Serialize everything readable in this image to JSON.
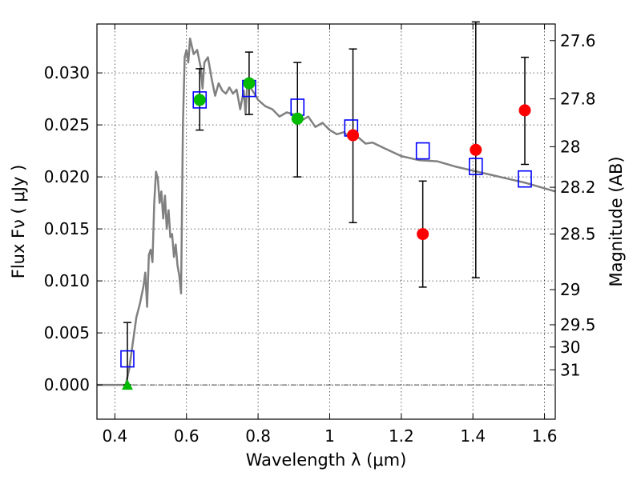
{
  "chart_data": {
    "type": "scatter",
    "xlabel": "Wavelength  λ (μm)",
    "ylabel": "Flux  Fν  ( μJy )",
    "ylabel_right": "Magnitude (AB)",
    "xlim": [
      0.35,
      1.63
    ],
    "ylim": [
      -0.0033,
      0.0347
    ],
    "grid": true,
    "x_ticks": [
      {
        "value": 0.4,
        "label": "0.4"
      },
      {
        "value": 0.6,
        "label": "0.6"
      },
      {
        "value": 0.8,
        "label": "0.8"
      },
      {
        "value": 1.0,
        "label": "1"
      },
      {
        "value": 1.2,
        "label": "1.2"
      },
      {
        "value": 1.4,
        "label": "1.4"
      },
      {
        "value": 1.6,
        "label": "1.6"
      }
    ],
    "y_ticks": [
      {
        "value": 0.0,
        "label": "0.000"
      },
      {
        "value": 0.005,
        "label": "0.005"
      },
      {
        "value": 0.01,
        "label": "0.010"
      },
      {
        "value": 0.015,
        "label": "0.015"
      },
      {
        "value": 0.02,
        "label": "0.020"
      },
      {
        "value": 0.025,
        "label": "0.025"
      },
      {
        "value": 0.03,
        "label": "0.030"
      }
    ],
    "right_ticks": [
      {
        "flux": 0.0331,
        "label": "27.6"
      },
      {
        "flux": 0.0275,
        "label": "27.8"
      },
      {
        "flux": 0.0229,
        "label": "28"
      },
      {
        "flux": 0.019,
        "label": "28.2"
      },
      {
        "flux": 0.0145,
        "label": "28.5"
      },
      {
        "flux": 0.00916,
        "label": "29"
      },
      {
        "flux": 0.00578,
        "label": "29.5"
      },
      {
        "flux": 0.00364,
        "label": "30"
      },
      {
        "flux": 0.00145,
        "label": "31"
      }
    ],
    "model_spectrum": {
      "color": "#808080",
      "x": [
        0.35,
        0.43,
        0.44,
        0.45,
        0.46,
        0.47,
        0.48,
        0.485,
        0.49,
        0.495,
        0.5,
        0.505,
        0.51,
        0.515,
        0.52,
        0.525,
        0.53,
        0.535,
        0.54,
        0.545,
        0.55,
        0.555,
        0.56,
        0.565,
        0.57,
        0.575,
        0.58,
        0.585,
        0.59,
        0.595,
        0.6,
        0.605,
        0.61,
        0.62,
        0.63,
        0.64,
        0.645,
        0.65,
        0.66,
        0.665,
        0.67,
        0.68,
        0.69,
        0.7,
        0.71,
        0.72,
        0.73,
        0.74,
        0.75,
        0.76,
        0.765,
        0.77,
        0.78,
        0.79,
        0.8,
        0.82,
        0.84,
        0.86,
        0.88,
        0.9,
        0.92,
        0.94,
        0.96,
        0.98,
        1.0,
        1.02,
        1.04,
        1.06,
        1.08,
        1.1,
        1.12,
        1.15,
        1.2,
        1.25,
        1.3,
        1.35,
        1.4,
        1.45,
        1.5,
        1.55,
        1.6,
        1.63
      ],
      "y": [
        0.0,
        0.0,
        0.0015,
        0.004,
        0.0065,
        0.0078,
        0.0095,
        0.0108,
        0.0075,
        0.0125,
        0.013,
        0.0118,
        0.0175,
        0.0205,
        0.0198,
        0.0175,
        0.0186,
        0.016,
        0.0182,
        0.015,
        0.0168,
        0.0142,
        0.0145,
        0.0123,
        0.0135,
        0.0115,
        0.0105,
        0.0088,
        0.025,
        0.0315,
        0.0322,
        0.031,
        0.0333,
        0.0318,
        0.0322,
        0.0305,
        0.0285,
        0.031,
        0.0315,
        0.0305,
        0.0295,
        0.0278,
        0.029,
        0.0283,
        0.028,
        0.0286,
        0.028,
        0.0284,
        0.0265,
        0.0283,
        0.026,
        0.0291,
        0.0285,
        0.028,
        0.0274,
        0.0268,
        0.0265,
        0.0258,
        0.0262,
        0.026,
        0.0254,
        0.0258,
        0.0248,
        0.0252,
        0.0245,
        0.0241,
        0.0243,
        0.0236,
        0.0238,
        0.0232,
        0.0233,
        0.0228,
        0.022,
        0.0216,
        0.0215,
        0.021,
        0.0206,
        0.0202,
        0.0198,
        0.0194,
        0.0189,
        0.0186
      ]
    },
    "observed_points": [
      {
        "x": 0.435,
        "y": 0.0,
        "color": "#00bb00",
        "marker": "triangle",
        "err_low": 0.0,
        "err_high": 0.006
      },
      {
        "x": 0.637,
        "y": 0.0274,
        "color": "#00bb00",
        "marker": "circle",
        "err_low": 0.0245,
        "err_high": 0.0304
      },
      {
        "x": 0.775,
        "y": 0.029,
        "color": "#00bb00",
        "marker": "circle",
        "err_low": 0.026,
        "err_high": 0.032
      },
      {
        "x": 0.91,
        "y": 0.0256,
        "color": "#00bb00",
        "marker": "circle",
        "err_low": 0.02,
        "err_high": 0.031
      },
      {
        "x": 1.065,
        "y": 0.024,
        "color": "#ff0000",
        "marker": "circle",
        "err_low": 0.0156,
        "err_high": 0.0323
      },
      {
        "x": 1.26,
        "y": 0.0145,
        "color": "#ff0000",
        "marker": "circle",
        "err_low": 0.0094,
        "err_high": 0.0196
      },
      {
        "x": 1.408,
        "y": 0.0226,
        "color": "#ff0000",
        "marker": "circle",
        "err_low": 0.0103,
        "err_high": 0.0349
      },
      {
        "x": 1.545,
        "y": 0.0264,
        "color": "#ff0000",
        "marker": "circle",
        "err_low": 0.0212,
        "err_high": 0.0315
      }
    ],
    "model_points": {
      "color": "#0000ff",
      "x": [
        0.435,
        0.637,
        0.775,
        0.91,
        1.06,
        1.26,
        1.408,
        1.545
      ],
      "y": [
        0.0025,
        0.0274,
        0.0285,
        0.0267,
        0.0247,
        0.0225,
        0.021,
        0.0198
      ]
    },
    "baseline": {
      "y": 0.0,
      "color": "#000000"
    }
  }
}
